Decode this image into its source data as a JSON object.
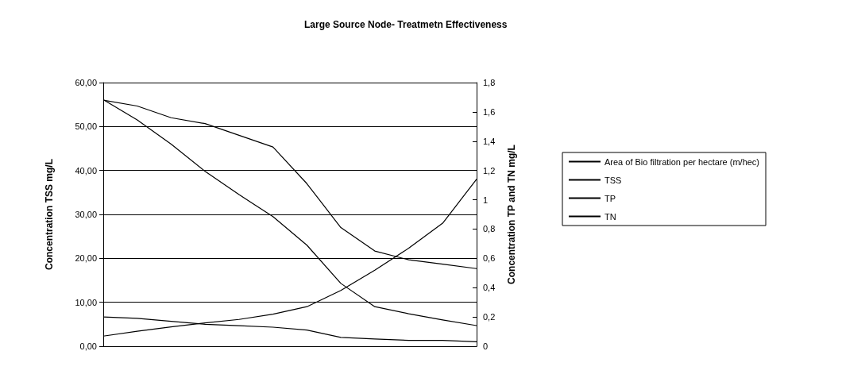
{
  "chart_data": {
    "type": "line",
    "title": "Large Source Node- Treatmetn Effectiveness",
    "ylabel": "Concentration TSS mg/L",
    "y2label": "Concentration TP and TN mg/L",
    "categories": [
      null,
      null,
      null,
      null,
      null,
      null,
      null,
      null,
      null,
      null,
      null,
      null
    ],
    "series": [
      {
        "name": "Area of Bio filtration per hectare (m/hec)",
        "color": "#000000",
        "values": [
          2.3,
          3.4,
          4.4,
          5.3,
          6.1,
          7.3,
          9.0,
          12.7,
          17.3,
          22.3,
          28,
          38
        ]
      },
      {
        "name": "TSS",
        "color": "#000000",
        "values": [
          56.1,
          51.5,
          46,
          39.8,
          34.5,
          29.5,
          23,
          14.3,
          9.0,
          7.4,
          6.0,
          4.7
        ]
      },
      {
        "name": "TP",
        "color": "#000000",
        "axis": "y2",
        "values": [
          0.2,
          0.19,
          0.17,
          0.15,
          0.14,
          0.13,
          0.11,
          0.06,
          0.05,
          0.04,
          0.04,
          0.03
        ]
      },
      {
        "name": "TN",
        "color": "#000000",
        "axis": "y2",
        "values": [
          1.68,
          1.64,
          1.56,
          1.52,
          1.44,
          1.36,
          1.11,
          0.81,
          0.65,
          0.59,
          0.56,
          0.53
        ]
      }
    ],
    "ylim": [
      0,
      60
    ],
    "yticks": [
      {
        "value": 0,
        "label": "0,00"
      },
      {
        "value": 10,
        "label": "10,00"
      },
      {
        "value": 20,
        "label": "20,00"
      },
      {
        "value": 30,
        "label": "30,00"
      },
      {
        "value": 40,
        "label": "40,00"
      },
      {
        "value": 50,
        "label": "50,00"
      },
      {
        "value": 60,
        "label": "60,00"
      }
    ],
    "y2lim": [
      0,
      1.8
    ],
    "y2ticks": [
      0,
      {
        "value": 0.2,
        "label": "0,2"
      },
      {
        "value": 0.4,
        "label": "0,4"
      },
      {
        "value": 0.6,
        "label": "0,6"
      },
      {
        "value": 0.8,
        "label": "0,8"
      },
      1,
      {
        "value": 1.2,
        "label": "1,2"
      },
      {
        "value": 1.4,
        "label": "1,4"
      },
      {
        "value": 1.6,
        "label": "1,6"
      },
      {
        "value": 1.8,
        "label": "1,8"
      }
    ],
    "grid": "y",
    "legend": "right",
    "marker": "none",
    "line_style": "solid"
  }
}
